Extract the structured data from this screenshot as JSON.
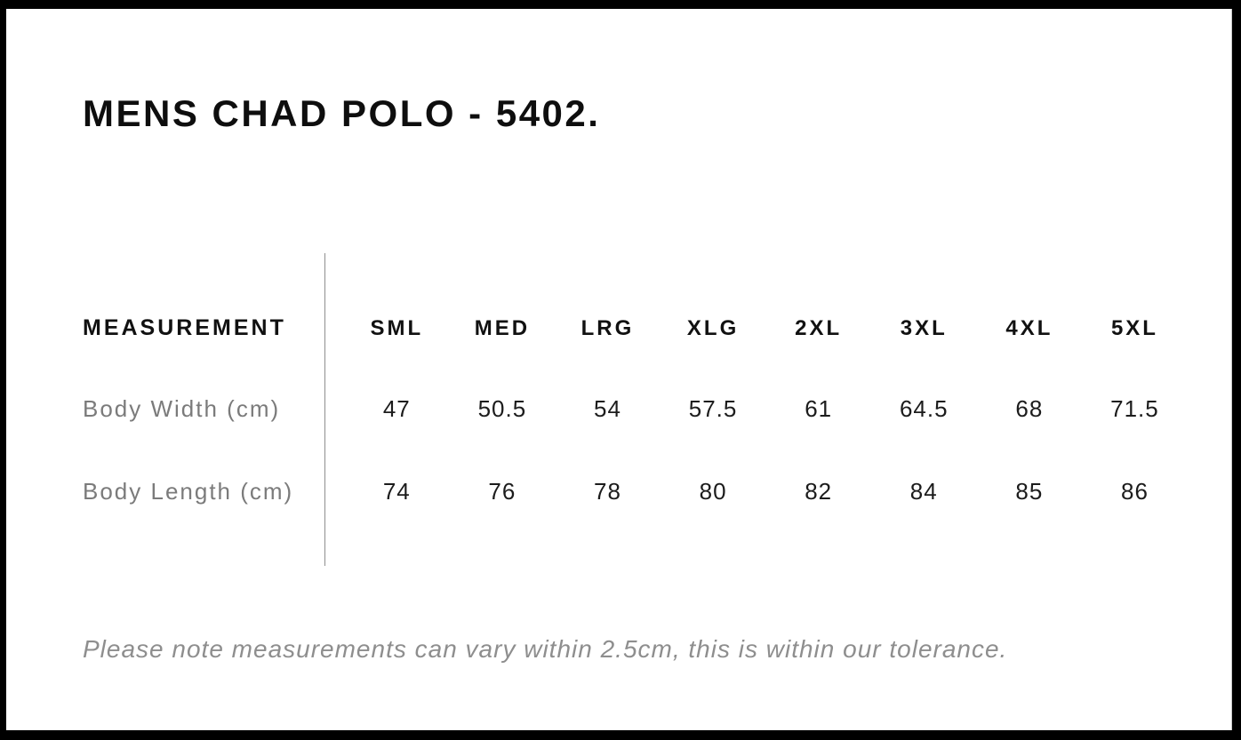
{
  "page": {
    "title": "MENS CHAD POLO - 5402.",
    "note": "Please note measurements can vary within 2.5cm, this is within our tolerance."
  },
  "size_chart": {
    "header_label": "MEASUREMENT",
    "sizes": [
      "SML",
      "MED",
      "LRG",
      "XLG",
      "2XL",
      "3XL",
      "4XL",
      "5XL"
    ],
    "rows": [
      {
        "label": "Body Width (cm)",
        "values": [
          "47",
          "50.5",
          "54",
          "57.5",
          "61",
          "64.5",
          "68",
          "71.5"
        ]
      },
      {
        "label": "Body Length (cm)",
        "values": [
          "74",
          "76",
          "78",
          "80",
          "82",
          "84",
          "85",
          "86"
        ]
      }
    ]
  },
  "colors": {
    "frame": "#000000",
    "page_background": "#ffffff",
    "heading_text": "#0e0e0e",
    "value_text": "#1c1c1c",
    "label_text": "#7b7b7b",
    "note_text": "#8e8e8e",
    "divider": "#8f8f8f"
  }
}
